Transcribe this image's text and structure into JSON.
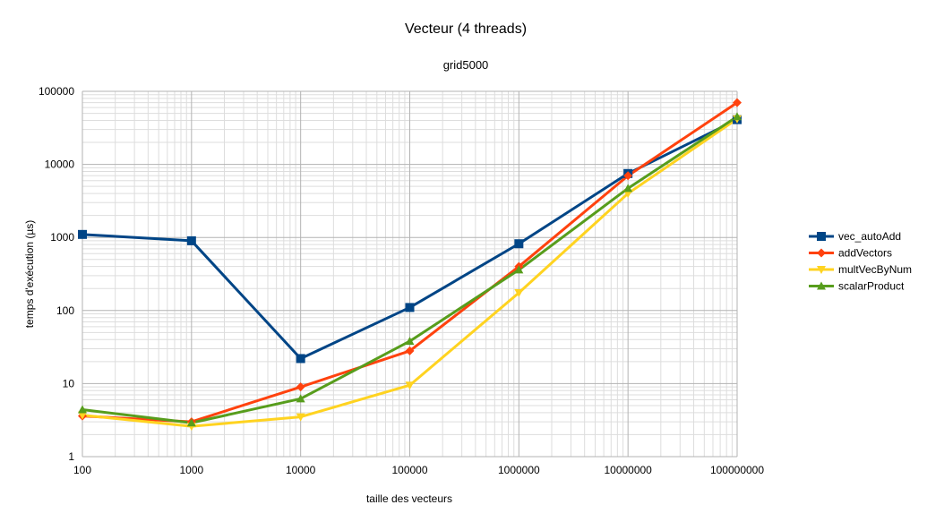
{
  "chart_data": {
    "type": "line",
    "title": "Vecteur (4 threads)",
    "subtitle": "grid5000",
    "xlabel": "taille des vecteurs",
    "ylabel": "temps d'exécution (µs)",
    "x_scale": "log",
    "y_scale": "log",
    "x": [
      100,
      1000,
      10000,
      100000,
      1000000,
      10000000,
      100000000
    ],
    "x_tick_labels": [
      "100",
      "1000",
      "10000",
      "100000",
      "1000000",
      "10000000",
      "100000000"
    ],
    "y_ticks": [
      1,
      10,
      100,
      1000,
      10000,
      100000
    ],
    "y_tick_labels": [
      "1",
      "10",
      "100",
      "1000",
      "10000",
      "100000"
    ],
    "xlim": [
      100,
      100000000
    ],
    "ylim": [
      1,
      100000
    ],
    "grid": true,
    "legend_position": "right",
    "series": [
      {
        "name": "vec_autoAdd",
        "color": "#004586",
        "marker": "square",
        "values": [
          1100,
          900,
          22,
          110,
          820,
          7500,
          41000
        ]
      },
      {
        "name": "addVectors",
        "color": "#ff420e",
        "marker": "diamond",
        "values": [
          3.6,
          3.0,
          9.0,
          28,
          400,
          7000,
          70000
        ]
      },
      {
        "name": "multVecByNum",
        "color": "#ffd320",
        "marker": "triangle-down",
        "values": [
          3.7,
          2.6,
          3.5,
          9.5,
          175,
          4000,
          42000
        ]
      },
      {
        "name": "scalarProduct",
        "color": "#579d1c",
        "marker": "triangle-up",
        "values": [
          4.4,
          2.9,
          6.2,
          38,
          360,
          4700,
          45000
        ]
      }
    ]
  }
}
